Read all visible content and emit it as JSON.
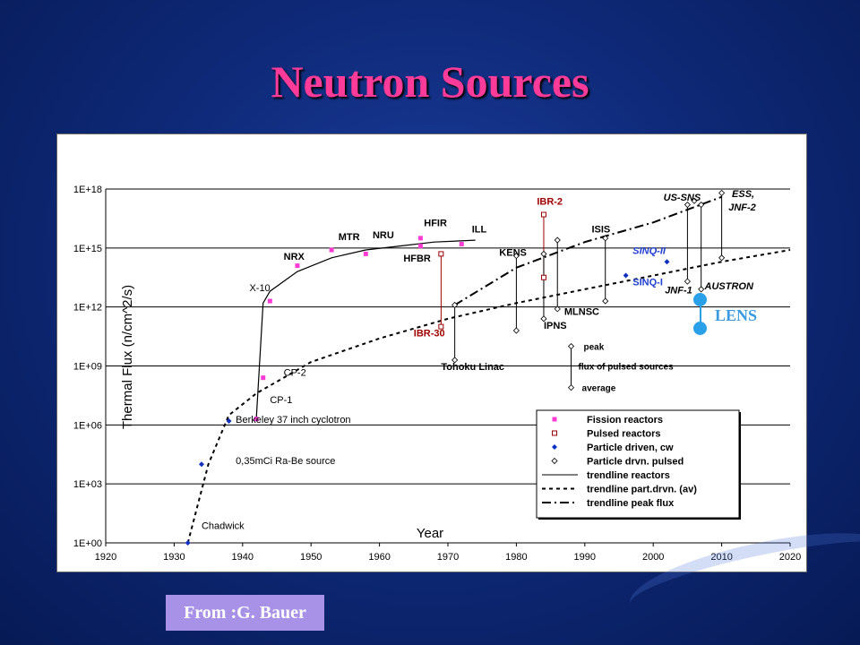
{
  "page": {
    "title": "Neutron Sources",
    "source_label": "From :G. Bauer"
  },
  "lens": {
    "label": "LENS",
    "color": "#2aa0e8"
  },
  "chart_data": {
    "type": "scatter",
    "title": "",
    "xlabel": "Year",
    "ylabel": "Thermal Flux (n/cm^2/s)",
    "x_ticks": [
      "1920",
      "1930",
      "1940",
      "1950",
      "1960",
      "1970",
      "1980",
      "1990",
      "2000",
      "2010",
      "2020"
    ],
    "xlim": [
      1920,
      2020
    ],
    "y_scale": "log",
    "y_ticks": [
      "1E+00",
      "1E+03",
      "1E+06",
      "1E+09",
      "1E+12",
      "1E+15",
      "1E+18"
    ],
    "ylim_exp": [
      0,
      18
    ],
    "grid": "horizontal",
    "colors": {
      "fission": "#ff3bd6",
      "pulsed": "#990000",
      "particle_cw": "#1030c0",
      "peak_text_red": "#a00000",
      "sinq": "#1f3fd0"
    },
    "series": [
      {
        "name": "Fission reactors",
        "marker": "square-filled",
        "points": [
          {
            "x": 1942,
            "y_exp": 6.3
          },
          {
            "x": 1943,
            "y_exp": 8.4
          },
          {
            "x": 1944,
            "y_exp": 12.3
          },
          {
            "x": 1948,
            "y_exp": 14.1
          },
          {
            "x": 1953,
            "y_exp": 14.9
          },
          {
            "x": 1958,
            "y_exp": 14.7
          },
          {
            "x": 1966,
            "y_exp": 15.1
          },
          {
            "x": 1966,
            "y_exp": 15.5
          },
          {
            "x": 1972,
            "y_exp": 15.2
          }
        ]
      },
      {
        "name": "Pulsed reactors",
        "marker": "square-open",
        "points": [
          {
            "x": 1969,
            "y_exp": 11.0
          },
          {
            "x": 1969,
            "y_exp": 14.7
          },
          {
            "x": 1984,
            "y_exp": 16.7
          },
          {
            "x": 1984,
            "y_exp": 13.5
          }
        ]
      },
      {
        "name": "Particle driven, cw",
        "marker": "diamond-filled",
        "points": [
          {
            "x": 1932,
            "y_exp": 0.0
          },
          {
            "x": 1934,
            "y_exp": 4.0
          },
          {
            "x": 1938,
            "y_exp": 6.2
          },
          {
            "x": 1996,
            "y_exp": 13.6
          },
          {
            "x": 2002,
            "y_exp": 14.3
          }
        ]
      },
      {
        "name": "Particle drvn. pulsed",
        "marker": "diamond-open",
        "points": [
          {
            "x": 1971,
            "y_exp": 9.3
          },
          {
            "x": 1971,
            "y_exp": 12.1
          },
          {
            "x": 1980,
            "y_exp": 10.8
          },
          {
            "x": 1980,
            "y_exp": 14.6
          },
          {
            "x": 1984,
            "y_exp": 11.4
          },
          {
            "x": 1984,
            "y_exp": 14.7
          },
          {
            "x": 1986,
            "y_exp": 11.9
          },
          {
            "x": 1986,
            "y_exp": 15.4
          },
          {
            "x": 1993,
            "y_exp": 12.3
          },
          {
            "x": 1993,
            "y_exp": 15.5
          },
          {
            "x": 2005,
            "y_exp": 13.3
          },
          {
            "x": 2005,
            "y_exp": 17.2
          },
          {
            "x": 2006,
            "y_exp": 17.4
          },
          {
            "x": 2007,
            "y_exp": 12.9
          },
          {
            "x": 2007,
            "y_exp": 17.2
          },
          {
            "x": 2010,
            "y_exp": 14.5
          },
          {
            "x": 2010,
            "y_exp": 17.8
          }
        ]
      }
    ],
    "trendlines": [
      {
        "name": "trendline reactors",
        "style": "solid",
        "points": [
          [
            1942,
            6.3
          ],
          [
            1943,
            12.2
          ],
          [
            1944,
            12.8
          ],
          [
            1948,
            13.8
          ],
          [
            1953,
            14.5
          ],
          [
            1958,
            14.9
          ],
          [
            1963,
            15.1
          ],
          [
            1968,
            15.3
          ],
          [
            1974,
            15.4
          ]
        ]
      },
      {
        "name": "trendline part.drvn. (av)",
        "style": "dashed",
        "points": [
          [
            1932,
            0.0
          ],
          [
            1935,
            4.0
          ],
          [
            1938,
            6.5
          ],
          [
            1942,
            7.6
          ],
          [
            1950,
            9.2
          ],
          [
            1960,
            10.4
          ],
          [
            1970,
            11.4
          ],
          [
            1980,
            12.2
          ],
          [
            1990,
            12.9
          ],
          [
            2000,
            13.6
          ],
          [
            2010,
            14.3
          ],
          [
            2020,
            14.9
          ]
        ]
      },
      {
        "name": "trendline peak flux",
        "style": "dashdot",
        "points": [
          [
            1971,
            12.1
          ],
          [
            1980,
            14.0
          ],
          [
            1990,
            15.3
          ],
          [
            2000,
            16.3
          ],
          [
            2010,
            17.6
          ]
        ]
      }
    ],
    "annotations": [
      {
        "text": "Chadwick",
        "x": 1934,
        "y_exp": 0.7,
        "color": "#000",
        "bold": false
      },
      {
        "text": "0,35mCi Ra-Be source",
        "x": 1939,
        "y_exp": 4.0,
        "color": "#000",
        "bold": false
      },
      {
        "text": "Berkeley 37 inch cyclotron",
        "x": 1939,
        "y_exp": 6.1,
        "color": "#000",
        "bold": false
      },
      {
        "text": "CP-1",
        "x": 1944,
        "y_exp": 7.1,
        "color": "#000",
        "bold": false
      },
      {
        "text": "CP-2",
        "x": 1946,
        "y_exp": 8.5,
        "color": "#000",
        "bold": false
      },
      {
        "text": "X-10",
        "x": 1941,
        "y_exp": 12.8,
        "color": "#000",
        "bold": false
      },
      {
        "text": "NRX",
        "x": 1946,
        "y_exp": 14.4,
        "color": "#000",
        "bold": true
      },
      {
        "text": "MTR",
        "x": 1954,
        "y_exp": 15.4,
        "color": "#000",
        "bold": true
      },
      {
        "text": "NRU",
        "x": 1959,
        "y_exp": 15.5,
        "color": "#000",
        "bold": true
      },
      {
        "text": "HFIR",
        "x": 1966.5,
        "y_exp": 16.1,
        "color": "#000",
        "bold": true
      },
      {
        "text": "ILL",
        "x": 1973.5,
        "y_exp": 15.8,
        "color": "#000",
        "bold": true
      },
      {
        "text": "HFBR",
        "x": 1963.5,
        "y_exp": 14.3,
        "color": "#000",
        "bold": true
      },
      {
        "text": "IBR-30",
        "x": 1965,
        "y_exp": 10.5,
        "color": "#a00000",
        "bold": true
      },
      {
        "text": "Tohoku Linac",
        "x": 1969,
        "y_exp": 8.8,
        "color": "#000",
        "bold": true
      },
      {
        "text": "KENS",
        "x": 1977.5,
        "y_exp": 14.6,
        "color": "#000",
        "bold": true
      },
      {
        "text": "IBR-2",
        "x": 1983,
        "y_exp": 17.2,
        "color": "#a00000",
        "bold": true
      },
      {
        "text": "IPNS",
        "x": 1984,
        "y_exp": 10.9,
        "color": "#000",
        "bold": true
      },
      {
        "text": "MLNSC",
        "x": 1987,
        "y_exp": 11.6,
        "color": "#000",
        "bold": true
      },
      {
        "text": "ISIS",
        "x": 1991,
        "y_exp": 15.8,
        "color": "#000",
        "bold": true
      },
      {
        "text": "SINQ-II",
        "x": 1997,
        "y_exp": 14.7,
        "color": "#1f3fd0",
        "bold": true,
        "italic": true
      },
      {
        "text": "SINQ-I",
        "x": 1997,
        "y_exp": 13.1,
        "color": "#1f3fd0",
        "bold": true
      },
      {
        "text": "JNF-1",
        "x": 2001.7,
        "y_exp": 12.7,
        "color": "#000",
        "bold": true,
        "italic": true
      },
      {
        "text": "US-SNS",
        "x": 2001.5,
        "y_exp": 17.4,
        "color": "#000",
        "bold": true,
        "italic": true
      },
      {
        "text": "ESS,",
        "x": 2011.5,
        "y_exp": 17.6,
        "color": "#000",
        "bold": true,
        "italic": true
      },
      {
        "text": "JNF-2",
        "x": 2011,
        "y_exp": 16.9,
        "color": "#000",
        "bold": true,
        "italic": true
      },
      {
        "text": "AUSTRON",
        "x": 2007.5,
        "y_exp": 12.9,
        "color": "#000",
        "bold": true,
        "italic": true
      }
    ],
    "pulse_key": {
      "peak_label": "peak",
      "middle_label": "flux of pulsed sources",
      "average_label": "average"
    },
    "legend": {
      "position": "bottom-right",
      "items": [
        {
          "label": "Fission reactors",
          "marker": "square-filled"
        },
        {
          "label": "Pulsed reactors",
          "marker": "square-open"
        },
        {
          "label": "Particle driven, cw",
          "marker": "diamond-filled"
        },
        {
          "label": "Particle drvn. pulsed",
          "marker": "diamond-open"
        },
        {
          "label": "trendline reactors",
          "marker": "line-solid"
        },
        {
          "label": "trendline part.drvn. (av)",
          "marker": "line-dashed"
        },
        {
          "label": "trendline peak flux",
          "marker": "line-dashdot"
        }
      ]
    }
  }
}
